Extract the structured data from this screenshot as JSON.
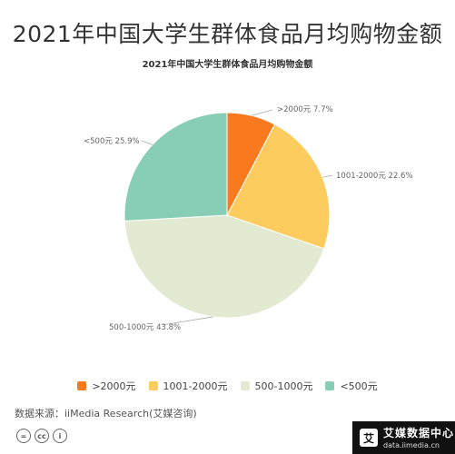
{
  "header": {
    "title": "2021年中国大学生群体食品月均购物金额"
  },
  "chart_data": {
    "type": "pie",
    "title": "2021年中国大学生群体食品月均购物金额",
    "unit": "%",
    "slices": [
      {
        "name": ">2000元",
        "label": ">2000元 7.7%",
        "value": 7.7,
        "color": "#F97A1E"
      },
      {
        "name": "1001-2000元",
        "label": "1001-2000元 22.6%",
        "value": 22.6,
        "color": "#FDCC5E"
      },
      {
        "name": "500-1000元",
        "label": "500-1000元 43.8%",
        "value": 43.8,
        "color": "#E2EAD1"
      },
      {
        "name": "<500元",
        "label": "<500元 25.9%",
        "value": 25.9,
        "color": "#88CDB6"
      }
    ],
    "legend_position": "bottom"
  },
  "legend": {
    "items": [
      {
        "label": ">2000元",
        "color": "#F97A1E"
      },
      {
        "label": "1001-2000元",
        "color": "#FDCC5E"
      },
      {
        "label": "500-1000元",
        "color": "#E2EAD1"
      },
      {
        "label": "<500元",
        "color": "#88CDB6"
      }
    ]
  },
  "footer": {
    "source": "数据来源：iiMedia Research(艾媒咨询)",
    "cc_icons": [
      "equals-icon",
      "cc-icon",
      "person-icon"
    ],
    "cc_symbols": [
      "=",
      "cc",
      "i"
    ],
    "brand_logo": "艾",
    "brand_name": "艾媒数据中心",
    "brand_url": "data.iimedia.cn"
  }
}
